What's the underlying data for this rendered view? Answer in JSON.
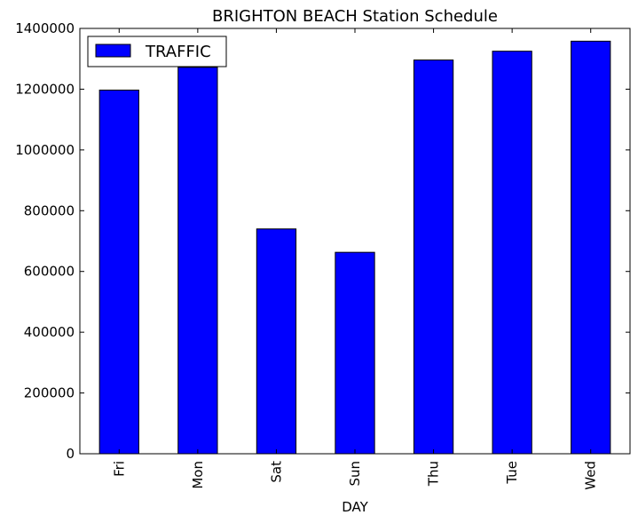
{
  "chart_data": {
    "type": "bar",
    "title": "BRIGHTON BEACH Station Schedule",
    "xlabel": "DAY",
    "ylabel": "",
    "categories": [
      "Fri",
      "Mon",
      "Sat",
      "Sun",
      "Thu",
      "Tue",
      "Wed"
    ],
    "series": [
      {
        "name": "TRAFFIC",
        "values": [
          1197000,
          1272000,
          740000,
          663000,
          1296000,
          1325000,
          1358000
        ],
        "color": "#0000ff"
      }
    ],
    "ylim": [
      0,
      1400000
    ],
    "yticks": [
      0,
      200000,
      400000,
      600000,
      800000,
      1000000,
      1200000,
      1400000
    ],
    "ytick_labels": [
      "0",
      "200000",
      "400000",
      "600000",
      "800000",
      "1000000",
      "1200000",
      "1400000"
    ],
    "legend": "top-left",
    "grid": false
  }
}
